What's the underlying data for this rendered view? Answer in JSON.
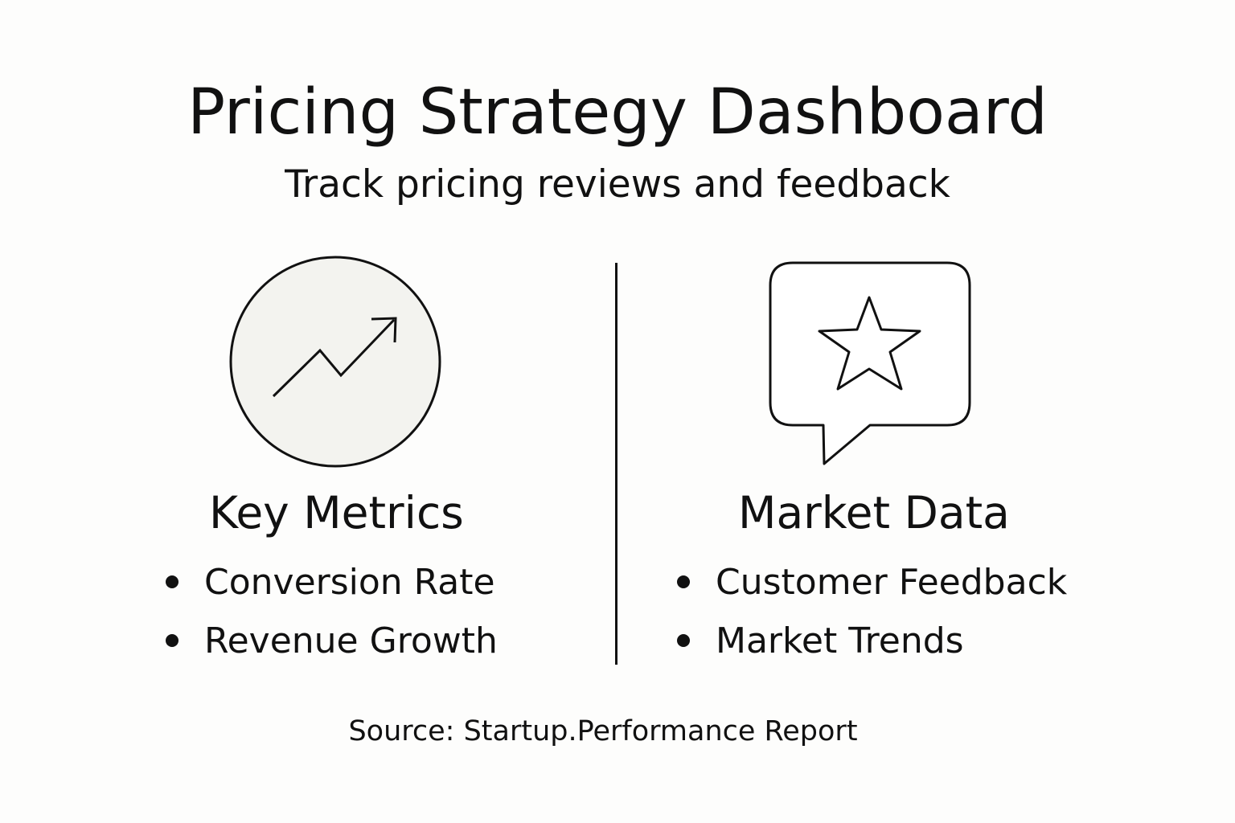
{
  "header": {
    "title": "Pricing Strategy Dashboard",
    "subtitle": "Track pricing reviews and feedback"
  },
  "left_panel": {
    "icon": "trending-up-icon",
    "heading": "Key Metrics",
    "items": [
      "Conversion Rate",
      "Revenue Growth"
    ]
  },
  "right_panel": {
    "icon": "star-review-icon",
    "heading": "Market Data",
    "items": [
      "Customer Feedback",
      "Market Trends"
    ]
  },
  "footer": {
    "source": "Source: Startup.Performance Report"
  },
  "colors": {
    "background": "#fdfdfc",
    "ink": "#111111",
    "icon_fill": "#f3f3ef"
  }
}
